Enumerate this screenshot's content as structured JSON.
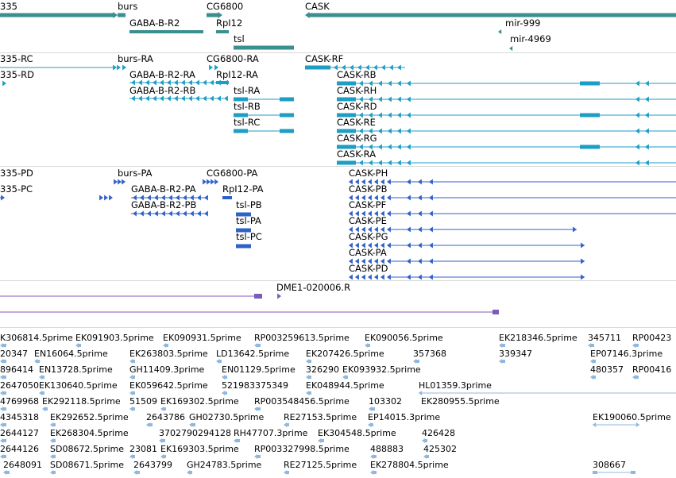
{
  "colors": {
    "gene": "#3a8f8f",
    "mrna": "#1d9ec4",
    "protein": "#2f61c9",
    "probe": "#7b5cb8",
    "est": "#8fb8df",
    "divider": "#d8d8d8"
  },
  "genes": {
    "labels": [
      "335",
      "burs",
      "CG6800",
      "CASK",
      "GABA-B-R2",
      "RpI12",
      "tsl",
      "mir-999",
      "mir-4969"
    ]
  },
  "transcripts": {
    "labels": [
      "335-RC",
      "burs-RA",
      "CG6800-RA",
      "CASK-RF",
      "335-RD",
      "GABA-B-R2-RA",
      "CASK-RB",
      "RpI12-RA",
      "GABA-B-R2-RB",
      "tsl-RA",
      "CASK-RH",
      "tsl-RB",
      "CASK-RD",
      "tsl-RC",
      "CASK-RE",
      "CASK-RG",
      "CASK-RA"
    ]
  },
  "proteins": {
    "labels": [
      "335-PD",
      "burs-PA",
      "CG6800-PA",
      "CASK-PH",
      "335-PC",
      "GABA-B-R2-PA",
      "RpI12-PA",
      "CASK-PB",
      "GABA-B-R2-PB",
      "tsl-PB",
      "CASK-PF",
      "tsl-PA",
      "CASK-PE",
      "tsl-PC",
      "CASK-PG",
      "CASK-PA",
      "CASK-PD"
    ]
  },
  "probes": {
    "labels": [
      "DME1-020006.R"
    ]
  },
  "ests": {
    "rows": [
      [
        "K306814.5prime",
        "EK091903.5prime",
        "EK090931.5prime",
        "RP003259613.5prime",
        "EK090056.5prime",
        "EK218346.5prime",
        "345711",
        "RP00423"
      ],
      [
        "20347",
        "EN16064.5prime",
        "EK263803.5prime",
        "LD13642.5prime",
        "EK207426.5prime",
        "357368",
        "339347",
        "EP07146.3prime"
      ],
      [
        "896414",
        "EN13728.5prime",
        "GH11409.3prime",
        "EN01129.5prime",
        "326290",
        "EK093932.5prime",
        "480357",
        "RP00416"
      ],
      [
        "2647050",
        "EK130640.5prime",
        "EK059642.5prime",
        "521983375349",
        "EK048944.5prime",
        "HL01359.3prime"
      ],
      [
        "4769968",
        "EK292118.5prime",
        "51509",
        "EK169302.5prime",
        "RP003548456.5prime",
        "103302",
        "EK280955.5prime"
      ],
      [
        "4345318",
        "EK292652.5prime",
        "2643786",
        "GH02730.5prime",
        "RE27153.5prime",
        "EP14015.3prime",
        "EK190060.5prime"
      ],
      [
        "2644127",
        "EK268304.5prime",
        "3702790294128",
        "RH47707.3prime",
        "EK304548.5prime",
        "426428"
      ],
      [
        "2644126",
        "SD08672.5prime",
        "23081",
        "EK169303.5prime",
        "RP003327998.5prime",
        "488883",
        "425302"
      ],
      [
        "2648091",
        "SD08671.5prime",
        "2643799",
        "GH24783.5prime",
        "RE27125.5prime",
        "EK278804.5prime",
        "308667"
      ]
    ]
  }
}
